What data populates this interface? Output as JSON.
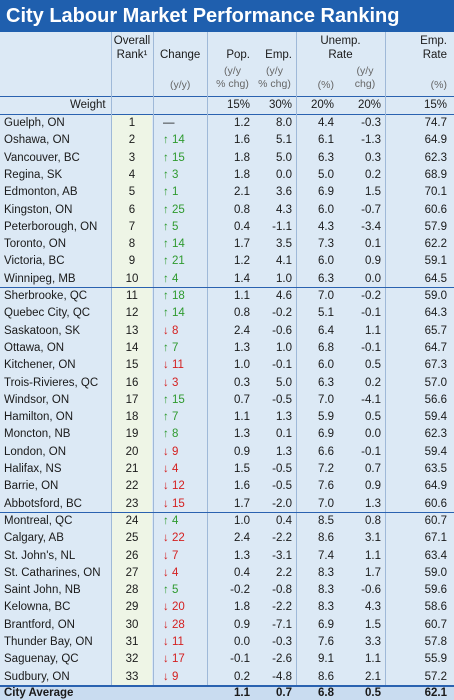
{
  "title": "City Labour Market Performance Ranking",
  "header": {
    "overall": "Overall",
    "rank": "Rank¹",
    "change": "Change",
    "change_unit": "(y/y)",
    "pop": "Pop.",
    "emp": "Emp.",
    "unemp": "Unemp.",
    "unemp_rate": "Rate",
    "emp_rate1": "Emp.",
    "emp_rate2": "Rate",
    "yy": "(y/y",
    "pct_chg": "% chg)",
    "chg": "chg)",
    "pct": "(%)"
  },
  "weight": {
    "label": "Weight",
    "values": [
      "15%",
      "30%",
      "20%",
      "20%",
      "15%"
    ]
  },
  "rows": [
    [
      "Guelph, ON",
      "1",
      "—",
      "1.2",
      "8.0",
      "4.4",
      "-0.3",
      "74.7"
    ],
    [
      "Oshawa, ON",
      "2",
      "↑ 14",
      "1.6",
      "5.1",
      "6.1",
      "-1.3",
      "64.9"
    ],
    [
      "Vancouver, BC",
      "3",
      "↑ 15",
      "1.8",
      "5.0",
      "6.3",
      "0.3",
      "62.3"
    ],
    [
      "Regina, SK",
      "4",
      "↑ 3",
      "1.8",
      "0.0",
      "5.0",
      "0.2",
      "68.9"
    ],
    [
      "Edmonton, AB",
      "5",
      "↑ 1",
      "2.1",
      "3.6",
      "6.9",
      "1.5",
      "70.1"
    ],
    [
      "Kingston, ON",
      "6",
      "↑ 25",
      "0.8",
      "4.3",
      "6.0",
      "-0.7",
      "60.6"
    ],
    [
      "Peterborough, ON",
      "7",
      "↑ 5",
      "0.4",
      "-1.1",
      "4.3",
      "-3.4",
      "57.9"
    ],
    [
      "Toronto, ON",
      "8",
      "↑ 14",
      "1.7",
      "3.5",
      "7.3",
      "0.1",
      "62.2"
    ],
    [
      "Victoria, BC",
      "9",
      "↑ 21",
      "1.2",
      "4.1",
      "6.0",
      "0.9",
      "59.1"
    ],
    [
      "Winnipeg, MB",
      "10",
      "↑ 4",
      "1.4",
      "1.0",
      "6.3",
      "0.0",
      "64.5"
    ],
    [
      "Sherbrooke, QC",
      "11",
      "↑ 18",
      "1.1",
      "4.6",
      "7.0",
      "-0.2",
      "59.0"
    ],
    [
      "Quebec City, QC",
      "12",
      "↑ 14",
      "0.8",
      "-0.2",
      "5.1",
      "-0.1",
      "64.3"
    ],
    [
      "Saskatoon, SK",
      "13",
      "↓ 8",
      "2.4",
      "-0.6",
      "6.4",
      "1.1",
      "65.7"
    ],
    [
      "Ottawa, ON",
      "14",
      "↑ 7",
      "1.3",
      "1.0",
      "6.8",
      "-0.1",
      "64.7"
    ],
    [
      "Kitchener, ON",
      "15",
      "↓ 11",
      "1.0",
      "-0.1",
      "6.0",
      "0.5",
      "67.3"
    ],
    [
      "Trois-Rivieres, QC",
      "16",
      "↓ 3",
      "0.3",
      "5.0",
      "6.3",
      "0.2",
      "57.0"
    ],
    [
      "Windsor, ON",
      "17",
      "↑ 15",
      "0.7",
      "-0.5",
      "7.0",
      "-4.1",
      "56.6"
    ],
    [
      "Hamilton, ON",
      "18",
      "↑ 7",
      "1.1",
      "1.3",
      "5.9",
      "0.5",
      "59.4"
    ],
    [
      "Moncton, NB",
      "19",
      "↑ 8",
      "1.3",
      "0.1",
      "6.9",
      "0.0",
      "62.3"
    ],
    [
      "London, ON",
      "20",
      "↓ 9",
      "0.9",
      "1.3",
      "6.6",
      "-0.1",
      "59.4"
    ],
    [
      "Halifax, NS",
      "21",
      "↓ 4",
      "1.5",
      "-0.5",
      "7.2",
      "0.7",
      "63.5"
    ],
    [
      "Barrie, ON",
      "22",
      "↓ 12",
      "1.6",
      "-0.5",
      "7.6",
      "0.9",
      "64.9"
    ],
    [
      "Abbotsford, BC",
      "23",
      "↓ 15",
      "1.7",
      "-2.0",
      "7.0",
      "1.3",
      "60.6"
    ],
    [
      "Montreal, QC",
      "24",
      "↑ 4",
      "1.0",
      "0.4",
      "8.5",
      "0.8",
      "60.7"
    ],
    [
      "Calgary, AB",
      "25",
      "↓ 22",
      "2.4",
      "-2.2",
      "8.6",
      "3.1",
      "67.1"
    ],
    [
      "St. John's, NL",
      "26",
      "↓ 7",
      "1.3",
      "-3.1",
      "7.4",
      "1.1",
      "63.4"
    ],
    [
      "St. Catharines, ON",
      "27",
      "↓ 4",
      "0.4",
      "2.2",
      "8.3",
      "1.7",
      "59.0"
    ],
    [
      "Saint John, NB",
      "28",
      "↑ 5",
      "-0.2",
      "-0.8",
      "8.3",
      "-0.6",
      "59.6"
    ],
    [
      "Kelowna, BC",
      "29",
      "↓ 20",
      "1.8",
      "-2.2",
      "8.3",
      "4.3",
      "58.6"
    ],
    [
      "Brantford, ON",
      "30",
      "↓ 28",
      "0.9",
      "-7.1",
      "6.9",
      "1.5",
      "60.7"
    ],
    [
      "Thunder Bay, ON",
      "31",
      "↓ 11",
      "0.0",
      "-0.3",
      "7.6",
      "3.3",
      "57.8"
    ],
    [
      "Saguenay, QC",
      "32",
      "↓ 17",
      "-0.1",
      "-2.6",
      "9.1",
      "1.1",
      "55.9"
    ],
    [
      "Sudbury, ON",
      "33",
      "↓ 9",
      "0.2",
      "-4.8",
      "8.6",
      "2.1",
      "57.2"
    ]
  ],
  "average": {
    "label": "City Average",
    "values": [
      "1.1",
      "0.7",
      "6.8",
      "0.5",
      "62.1"
    ]
  }
}
